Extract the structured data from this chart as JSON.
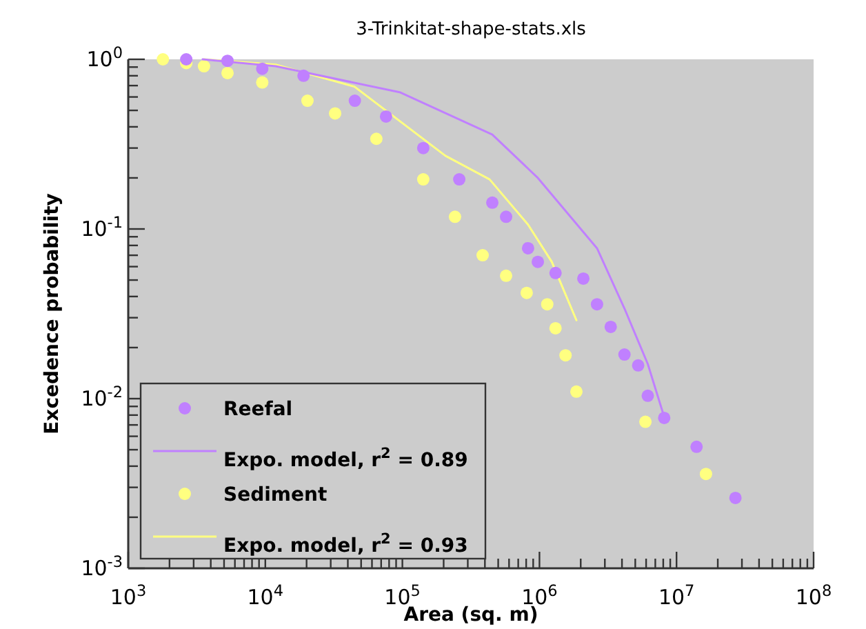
{
  "chart_data": {
    "type": "scatter",
    "title": "3-Trinkitat-shape-stats.xls",
    "xlabel": "Area (sq. m)",
    "ylabel": "Excedence probability",
    "log": "xy",
    "grid": false,
    "legend": "bottom left",
    "marker": "circle",
    "xlim": [
      1000,
      100000000
    ],
    "ylim": [
      0.001,
      1
    ],
    "xticks": [
      {
        "value": 1000,
        "label": "10$^{3}$"
      },
      {
        "value": 2000,
        "label": null
      },
      {
        "value": 3000,
        "label": null
      },
      {
        "value": 4000,
        "label": null
      },
      {
        "value": 5000,
        "label": null
      },
      {
        "value": 6000,
        "label": null
      },
      {
        "value": 7000,
        "label": null
      },
      {
        "value": 8000,
        "label": null
      },
      {
        "value": 9000,
        "label": null
      },
      {
        "value": 10000,
        "label": "10$^{4}$"
      },
      {
        "value": 20000,
        "label": null
      },
      {
        "value": 30000,
        "label": null
      },
      {
        "value": 40000,
        "label": null
      },
      {
        "value": 50000,
        "label": null
      },
      {
        "value": 60000,
        "label": null
      },
      {
        "value": 70000,
        "label": null
      },
      {
        "value": 80000,
        "label": null
      },
      {
        "value": 90000,
        "label": null
      },
      {
        "value": 100000,
        "label": "10$^{5}$"
      },
      {
        "value": 200000,
        "label": null
      },
      {
        "value": 300000,
        "label": null
      },
      {
        "value": 400000,
        "label": null
      },
      {
        "value": 500000,
        "label": null
      },
      {
        "value": 600000,
        "label": null
      },
      {
        "value": 700000,
        "label": null
      },
      {
        "value": 800000,
        "label": null
      },
      {
        "value": 900000,
        "label": null
      },
      {
        "value": 1000000,
        "label": "10$^{6}$"
      },
      {
        "value": 2000000,
        "label": null
      },
      {
        "value": 3000000,
        "label": null
      },
      {
        "value": 4000000,
        "label": null
      },
      {
        "value": 5000000,
        "label": null
      },
      {
        "value": 6000000,
        "label": null
      },
      {
        "value": 7000000,
        "label": null
      },
      {
        "value": 8000000,
        "label": null
      },
      {
        "value": 9000000,
        "label": null
      },
      {
        "value": 10000000,
        "label": "10$^{7}$"
      },
      {
        "value": 20000000,
        "label": null
      },
      {
        "value": 30000000,
        "label": null
      },
      {
        "value": 40000000,
        "label": null
      },
      {
        "value": 50000000,
        "label": null
      },
      {
        "value": 60000000,
        "label": null
      },
      {
        "value": 70000000,
        "label": null
      },
      {
        "value": 80000000,
        "label": null
      },
      {
        "value": 90000000,
        "label": null
      },
      {
        "value": 100000000,
        "label": "10$^{8}$"
      }
    ],
    "yticks": [
      {
        "value": 0.001,
        "label": "10$^{-3}$"
      },
      {
        "value": 0.002,
        "label": null
      },
      {
        "value": 0.003,
        "label": null
      },
      {
        "value": 0.004,
        "label": null
      },
      {
        "value": 0.005,
        "label": null
      },
      {
        "value": 0.006,
        "label": null
      },
      {
        "value": 0.007,
        "label": null
      },
      {
        "value": 0.008,
        "label": null
      },
      {
        "value": 0.009,
        "label": null
      },
      {
        "value": 0.01,
        "label": "10$^{-2}$"
      },
      {
        "value": 0.02,
        "label": null
      },
      {
        "value": 0.03,
        "label": null
      },
      {
        "value": 0.04,
        "label": null
      },
      {
        "value": 0.05,
        "label": null
      },
      {
        "value": 0.06,
        "label": null
      },
      {
        "value": 0.07,
        "label": null
      },
      {
        "value": 0.08,
        "label": null
      },
      {
        "value": 0.09,
        "label": null
      },
      {
        "value": 0.1,
        "label": "10$^{-1}$"
      },
      {
        "value": 0.2,
        "label": null
      },
      {
        "value": 0.3,
        "label": null
      },
      {
        "value": 0.4,
        "label": null
      },
      {
        "value": 0.5,
        "label": null
      },
      {
        "value": 0.6,
        "label": null
      },
      {
        "value": 0.7,
        "label": null
      },
      {
        "value": 0.8,
        "label": null
      },
      {
        "value": 0.9,
        "label": null
      },
      {
        "value": 1,
        "label": "10$^{0}$"
      }
    ],
    "series": [
      {
        "name": "Reefal",
        "color": "#c080ff",
        "x": [
          2650,
          5300,
          9500,
          19000,
          45000,
          76000,
          142000,
          260000,
          453000,
          571000,
          826000,
          973000,
          1310000,
          2090000,
          2630000,
          3310000,
          4170000,
          5250000,
          6170000,
          8130000,
          14000000,
          26900000
        ],
        "values": [
          1,
          0.98,
          0.88,
          0.8,
          0.57,
          0.46,
          0.3,
          0.196,
          0.143,
          0.118,
          0.077,
          0.064,
          0.055,
          0.051,
          0.036,
          0.0265,
          0.0182,
          0.0157,
          0.0104,
          0.0077,
          0.0052,
          0.0026
        ]
      },
      {
        "name": "Expo. model, r$^{2}$ = 0.89",
        "type": "line",
        "marker": "none",
        "color": "#c080ff",
        "x": [
          3490,
          11900,
          95500,
          453000,
          973000,
          2630000,
          4170000,
          6170000,
          8130000
        ],
        "values": [
          1,
          0.91,
          0.64,
          0.36,
          0.2,
          0.077,
          0.034,
          0.016,
          0.0078
        ]
      },
      {
        "name": "Sediment",
        "color": "#ffff80",
        "x": [
          1790,
          2650,
          3570,
          5300,
          9500,
          20300,
          32300,
          64600,
          142000,
          242000,
          385000,
          571000,
          807000,
          1140000,
          1310000,
          1550000,
          1860000,
          5930000,
          16400000
        ],
        "values": [
          1,
          0.95,
          0.91,
          0.83,
          0.73,
          0.57,
          0.48,
          0.34,
          0.196,
          0.118,
          0.07,
          0.053,
          0.042,
          0.036,
          0.026,
          0.018,
          0.011,
          0.0073,
          0.0036
        ]
      },
      {
        "name": "Expo. model, r$^{2}$ = 0.93",
        "type": "line",
        "marker": "none",
        "color": "#ffff80",
        "x": [
          3570,
          11900,
          44700,
          206000,
          433000,
          826000,
          1230000,
          1860000
        ],
        "values": [
          1,
          0.93,
          0.69,
          0.27,
          0.196,
          0.106,
          0.064,
          0.029
        ]
      }
    ]
  }
}
